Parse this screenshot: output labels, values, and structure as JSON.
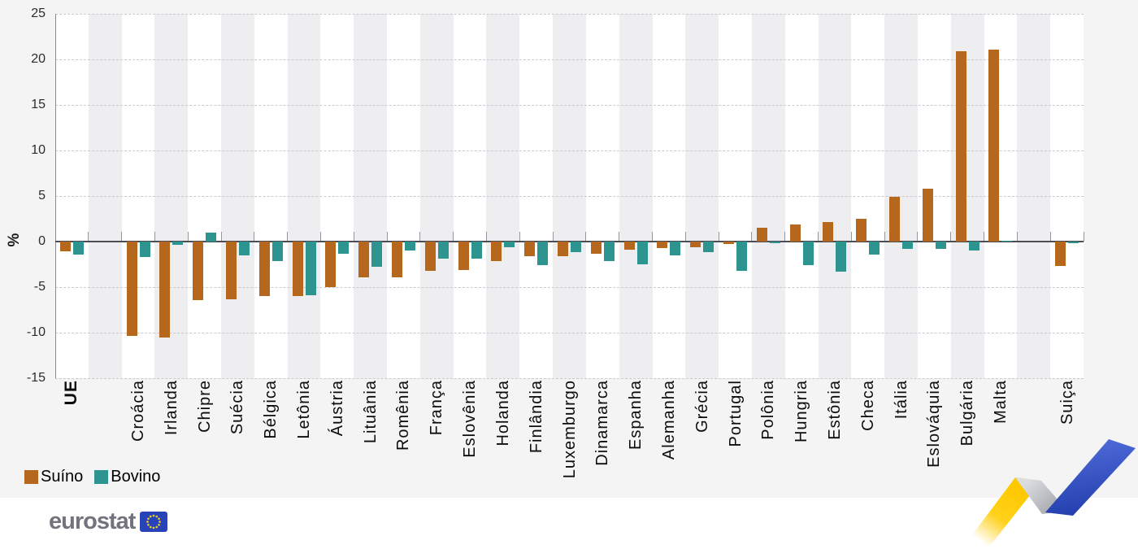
{
  "chart_data": {
    "type": "bar",
    "ylabel": "%",
    "ylim": [
      -15,
      25
    ],
    "yticks": [
      25,
      20,
      15,
      10,
      5,
      0,
      -5,
      -10,
      -15
    ],
    "grid": "dashed-horizontal",
    "legend_position": "bottom-left",
    "bold_category": "UE",
    "spacer_after": [
      "UE",
      "Malta"
    ],
    "categories": [
      "UE",
      "Croácia",
      "Irlanda",
      "Chipre",
      "Suécia",
      "Bélgica",
      "Letônia",
      "Áustria",
      "Lituânia",
      "Romênia",
      "França",
      "Eslovênia",
      "Holanda",
      "Finlândia",
      "Luxemburgo",
      "Dinamarca",
      "Espanha",
      "Alemanha",
      "Grécia",
      "Portugal",
      "Polônia",
      "Hungria",
      "Estônia",
      "Checa",
      "Itália",
      "Eslováquia",
      "Bulgária",
      "Malta",
      "Suiça"
    ],
    "series": [
      {
        "name": "Suíno",
        "color": "#b5671e",
        "values": [
          -1.1,
          -10.4,
          -10.5,
          -6.4,
          -6.3,
          -6.0,
          -6.0,
          -5.0,
          -3.9,
          -3.9,
          -3.2,
          -3.1,
          -2.1,
          -1.6,
          -1.6,
          -1.3,
          -0.9,
          -0.7,
          -0.6,
          -0.3,
          1.5,
          1.9,
          2.1,
          2.5,
          4.9,
          5.8,
          20.9,
          21.1,
          -2.7
        ]
      },
      {
        "name": "Bovino",
        "color": "#2e948f",
        "values": [
          -1.4,
          -1.7,
          -0.4,
          1.0,
          -1.5,
          -2.1,
          -5.9,
          -1.3,
          -2.8,
          -1.0,
          -1.9,
          -1.9,
          -0.6,
          -2.6,
          -1.2,
          -2.1,
          -2.5,
          -1.5,
          -1.2,
          -3.2,
          -0.2,
          -2.6,
          -3.3,
          -1.4,
          -0.8,
          -0.8,
          -1.0,
          0.1,
          -0.2
        ]
      }
    ]
  },
  "branding": {
    "logo_text": "eurostat"
  },
  "colors": {
    "band_light": "#ffffff",
    "band_dark": "#eeeef0",
    "page_background": "#f4f4f5",
    "zero_line": "#4d4e53",
    "gridline": "#c9c9ce",
    "zigzag_yellow": "#ffcc00",
    "zigzag_grey": "#aaabb1",
    "zigzag_blue": "#2844b8",
    "eu_flag_blue": "#2843b8",
    "eu_flag_stars": "#f7d117"
  }
}
